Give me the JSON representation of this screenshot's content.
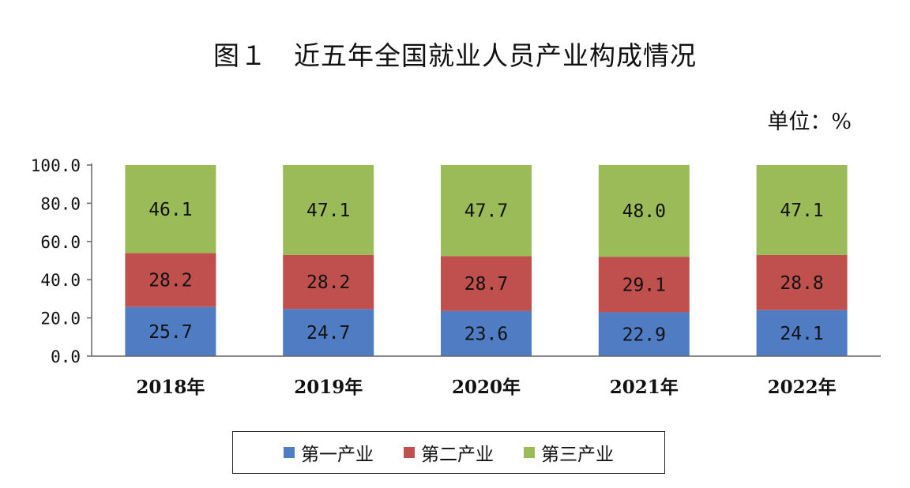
{
  "title": "图１　近五年全国就业人员产业构成情况",
  "unit": "单位：%",
  "colors": {
    "primary": "#4f7cc3",
    "secondary": "#c0504d",
    "tertiary": "#9bbb59"
  },
  "chart_data": {
    "type": "bar",
    "stacked": true,
    "categories": [
      "2018年",
      "2019年",
      "2020年",
      "2021年",
      "2022年"
    ],
    "series": [
      {
        "name": "第一产业",
        "values": [
          25.7,
          24.7,
          23.6,
          22.9,
          24.1
        ],
        "color": "#4f7cc3"
      },
      {
        "name": "第二产业",
        "values": [
          28.2,
          28.2,
          28.7,
          29.1,
          28.8
        ],
        "color": "#c0504d"
      },
      {
        "name": "第三产业",
        "values": [
          46.1,
          47.1,
          47.7,
          48.0,
          47.1
        ],
        "color": "#9bbb59"
      }
    ],
    "ylim": [
      0,
      100
    ],
    "yticks": [
      "0.0",
      "20.0",
      "40.0",
      "60.0",
      "80.0",
      "100.0"
    ],
    "legend_position": "bottom",
    "grid": false
  }
}
